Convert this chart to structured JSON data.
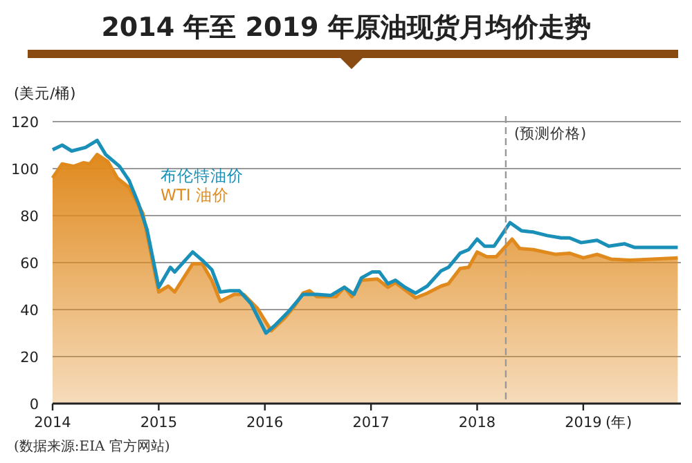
{
  "chart_data": {
    "type": "line",
    "title": "2014 年至 2019 年原油现货月均价走势",
    "ylabel": "(美元/桶)",
    "xlabel": "(年)",
    "xlim": [
      2014,
      2019.92
    ],
    "xticks": [
      2014,
      2015,
      2016,
      2017,
      2018,
      2019
    ],
    "ylim": [
      0,
      120
    ],
    "yticks": [
      0,
      20,
      40,
      60,
      80,
      100,
      120
    ],
    "grid": "y",
    "ref_lines": [
      {
        "axis": "x",
        "value": 2018.27,
        "label": "(预测价格)",
        "color": "#999999",
        "line_style": "dashed"
      }
    ],
    "annotations": [
      "(数据来源:EIA 官方网站)"
    ],
    "series": [
      {
        "name": "布伦特油价",
        "type": "line",
        "color": "#1a8fb8",
        "x": [
          2014.0,
          2014.09,
          2014.18,
          2014.31,
          2014.42,
          2014.5,
          2014.63,
          2014.72,
          2014.81,
          2014.89,
          2015.0,
          2015.11,
          2015.15,
          2015.32,
          2015.41,
          2015.5,
          2015.58,
          2015.67,
          2015.76,
          2015.87,
          2016.01,
          2016.1,
          2016.23,
          2016.36,
          2016.49,
          2016.62,
          2016.75,
          2016.84,
          2016.91,
          2017.01,
          2017.08,
          2017.16,
          2017.23,
          2017.32,
          2017.42,
          2017.53,
          2017.66,
          2017.73,
          2017.84,
          2017.92,
          2018.0,
          2018.07,
          2018.16,
          2018.31,
          2018.42,
          2018.53,
          2018.66,
          2018.79,
          2018.87,
          2018.98,
          2019.13,
          2019.24,
          2019.39,
          2019.48,
          2019.65,
          2019.89
        ],
        "values": [
          108,
          110,
          107.5,
          109,
          112,
          106,
          101,
          95,
          85,
          74,
          49.5,
          58,
          56,
          64.5,
          61,
          57,
          47.5,
          48,
          48,
          42.5,
          30,
          33.5,
          39.5,
          46.5,
          46.5,
          46,
          49.5,
          46.5,
          53.5,
          56,
          56,
          51,
          52.5,
          49.5,
          47,
          50,
          56.5,
          58,
          64,
          65.5,
          70,
          67,
          67,
          77,
          73.5,
          73,
          71.5,
          70.5,
          70.5,
          68.5,
          69.5,
          67,
          68,
          66.5,
          66.5,
          66.5
        ]
      },
      {
        "name": "WTI 油价",
        "type": "area",
        "color": "#e08a1e",
        "x": [
          2014.0,
          2014.09,
          2014.2,
          2014.29,
          2014.35,
          2014.42,
          2014.52,
          2014.61,
          2014.72,
          2014.85,
          2015.0,
          2015.09,
          2015.15,
          2015.32,
          2015.41,
          2015.5,
          2015.58,
          2015.71,
          2015.8,
          2015.93,
          2016.06,
          2016.19,
          2016.28,
          2016.36,
          2016.42,
          2016.49,
          2016.67,
          2016.75,
          2016.82,
          2016.91,
          2017.06,
          2017.16,
          2017.23,
          2017.42,
          2017.53,
          2017.66,
          2017.73,
          2017.84,
          2017.92,
          2018.0,
          2018.09,
          2018.18,
          2018.33,
          2018.4,
          2018.53,
          2018.74,
          2018.87,
          2019.0,
          2019.13,
          2019.26,
          2019.44,
          2019.65,
          2019.89
        ],
        "values": [
          96,
          102,
          101,
          102.5,
          102,
          106,
          103,
          96,
          92,
          81,
          47.5,
          50,
          47.5,
          59.5,
          59.5,
          52.5,
          43.5,
          46.5,
          46.5,
          40.5,
          31,
          36.5,
          41.5,
          47,
          48,
          45.5,
          45.5,
          49.5,
          45.5,
          52.5,
          53,
          49.5,
          51.5,
          45,
          47,
          50,
          51,
          57.5,
          58,
          64.5,
          62.5,
          62.5,
          70,
          66,
          65.5,
          63.5,
          64,
          62,
          63.5,
          61.5,
          61,
          61.5,
          62
        ]
      }
    ]
  }
}
